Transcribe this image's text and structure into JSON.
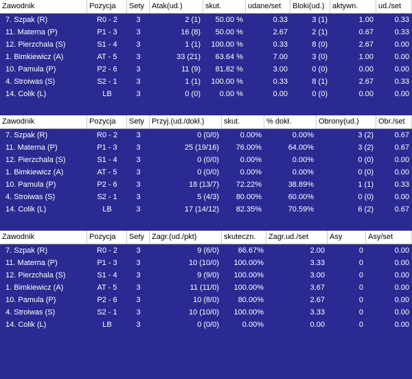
{
  "sections": [
    {
      "id": "attack",
      "headers": [
        "Zawodnik",
        "Pozycja",
        "Sety",
        "Atak(ud.)",
        "skut.",
        "udane/set",
        "Bloki(ud.)",
        "aktywn.",
        "ud./set"
      ],
      "rows": [
        [
          "7. Szpak (R)",
          "R0 - 2",
          "3",
          "2 (1)",
          "50.00 %",
          "0.33",
          "3 (1)",
          "1.00",
          "0.33"
        ],
        [
          "11. Materna (P)",
          "P1 - 3",
          "3",
          "16 (8)",
          "50.00 %",
          "2.67",
          "2 (1)",
          "0.67",
          "0.33"
        ],
        [
          "12. Pierzchala (S)",
          "S1 - 4",
          "3",
          "1 (1)",
          "100.00 %",
          "0.33",
          "8 (0)",
          "2.67",
          "0.00"
        ],
        [
          "1. Bimkiewicz (A)",
          "AT - 5",
          "3",
          "33 (21)",
          "63.64 %",
          "7.00",
          "3 (0)",
          "1.00",
          "0.00"
        ],
        [
          "10. Pamula (P)",
          "P2 - 6",
          "3",
          "11 (9)",
          "81.82 %",
          "3.00",
          "0 (0)",
          "0.00",
          "0.00"
        ],
        [
          "4. Stroiwas (S)",
          "S2 - 1",
          "3",
          "1 (1)",
          "100.00 %",
          "0.33",
          "8 (1)",
          "2.67",
          "0.33"
        ],
        [
          "14. Colik (L)",
          "LB",
          "3",
          "0 (0)",
          "0.00 %",
          "0.00",
          "0 (0)",
          "0.00",
          "0.00"
        ]
      ]
    },
    {
      "id": "reception",
      "headers": [
        "Zawodnik",
        "Pozycja",
        "Sety",
        "Przyj.(ud./dokł.)",
        "skut.",
        "% dokł.",
        "Obrony(ud.)",
        "Obr./set"
      ],
      "rows": [
        [
          "7. Szpak (R)",
          "R0 - 2",
          "3",
          "0 (0/0)",
          "0.00%",
          "0.00%",
          "3 (2)",
          "0.67"
        ],
        [
          "11. Materna (P)",
          "P1 - 3",
          "3",
          "25 (19/16)",
          "76.00%",
          "64.00%",
          "3 (2)",
          "0.67"
        ],
        [
          "12. Pierzchala (S)",
          "S1 - 4",
          "3",
          "0 (0/0)",
          "0.00%",
          "0.00%",
          "0 (0)",
          "0.00"
        ],
        [
          "1. Bimkiewicz (A)",
          "AT - 5",
          "3",
          "0 (0/0)",
          "0.00%",
          "0.00%",
          "0 (0)",
          "0.00"
        ],
        [
          "10. Pamula (P)",
          "P2 - 6",
          "3",
          "18 (13/7)",
          "72.22%",
          "38.89%",
          "1 (1)",
          "0.33"
        ],
        [
          "4. Stroiwas (S)",
          "S2 - 1",
          "3",
          "5 (4/3)",
          "80.00%",
          "60.00%",
          "0 (0)",
          "0.00"
        ],
        [
          "14. Colik (L)",
          "LB",
          "3",
          "17 (14/12)",
          "82.35%",
          "70.59%",
          "6 (2)",
          "0.67"
        ]
      ]
    },
    {
      "id": "serve",
      "headers": [
        "Zawodnik",
        "Pozycja",
        "Sety",
        "Zagr.(ud./pkt)",
        "skuteczn.",
        "Zagr.ud./set",
        "Asy",
        "Asy/set"
      ],
      "rows": [
        [
          "7. Szpak (R)",
          "R0 - 2",
          "3",
          "9 (6/0)",
          "66.67%",
          "2.00",
          "0",
          "0.00"
        ],
        [
          "11. Materna (P)",
          "P1 - 3",
          "3",
          "10 (10/0)",
          "100.00%",
          "3.33",
          "0",
          "0.00"
        ],
        [
          "12. Pierzchala (S)",
          "S1 - 4",
          "3",
          "9 (9/0)",
          "100.00%",
          "3.00",
          "0",
          "0.00"
        ],
        [
          "1. Bimkiewicz (A)",
          "AT - 5",
          "3",
          "11 (11/0)",
          "100.00%",
          "3.67",
          "0",
          "0.00"
        ],
        [
          "10. Pamula (P)",
          "P2 - 6",
          "3",
          "10 (8/0)",
          "80.00%",
          "2.67",
          "0",
          "0.00"
        ],
        [
          "4. Stroiwas (S)",
          "S2 - 1",
          "3",
          "10 (10/0)",
          "100.00%",
          "3.33",
          "0",
          "0.00"
        ],
        [
          "14. Colik (L)",
          "LB",
          "3",
          "0 (0/0)",
          "0.00%",
          "0.00",
          "0",
          "0.00"
        ]
      ]
    }
  ],
  "colors": {
    "background": "#2b2a92",
    "header_bg": "#ffffff",
    "row_text": "#ffffff"
  }
}
